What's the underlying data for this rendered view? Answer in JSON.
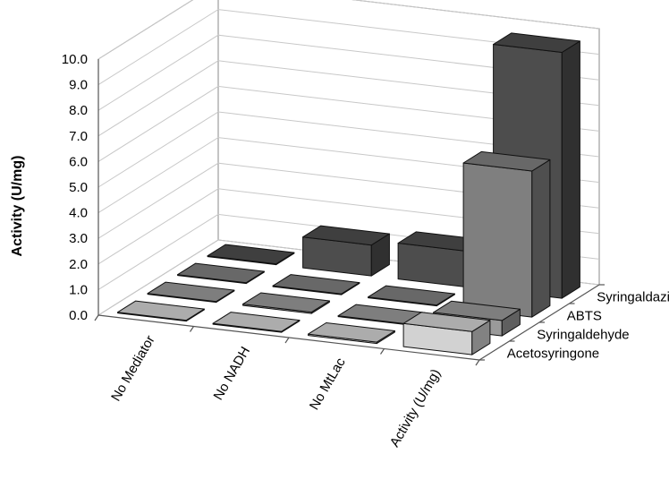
{
  "chart_data": {
    "type": "bar",
    "subtype": "3d-column",
    "title": "",
    "ylabel": "Activity (U/mg)",
    "xlabel": "",
    "ylim": [
      0,
      10
    ],
    "y_ticks": [
      "0.0",
      "1.0",
      "2.0",
      "3.0",
      "4.0",
      "5.0",
      "6.0",
      "7.0",
      "8.0",
      "9.0",
      "10.0"
    ],
    "categories": [
      "No Mediator",
      "No NADH",
      "No MtLac",
      "Activity (U/mg)"
    ],
    "series": [
      {
        "name": "Acetosyringone",
        "color": "#d2d2d2",
        "values": [
          0.02,
          0.03,
          0.05,
          0.9
        ]
      },
      {
        "name": "Syringaldehyde",
        "color": "#9a9a9a",
        "values": [
          0.02,
          0.05,
          0.03,
          0.6
        ]
      },
      {
        "name": "ABTS",
        "color": "#7f7f7f",
        "values": [
          0.02,
          0.02,
          0.02,
          5.7
        ]
      },
      {
        "name": "Syringaldazine",
        "color": "#4d4d4d",
        "values": [
          0.02,
          1.2,
          1.4,
          9.6
        ]
      }
    ],
    "grid": true,
    "legend": "depth-axis"
  }
}
